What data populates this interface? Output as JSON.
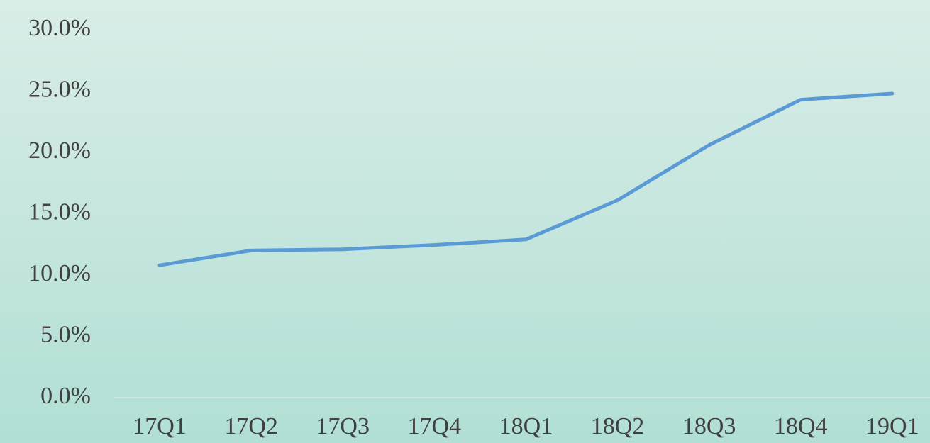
{
  "chart_data": {
    "type": "line",
    "categories": [
      "17Q1",
      "17Q2",
      "17Q3",
      "17Q4",
      "18Q1",
      "18Q2",
      "18Q3",
      "18Q4",
      "19Q1"
    ],
    "series": [
      {
        "name": "",
        "color": "#5b9bd5",
        "values": [
          10.8,
          12.0,
          12.1,
          12.45,
          12.9,
          16.1,
          20.6,
          24.3,
          24.8
        ]
      }
    ],
    "ylim": [
      0,
      30
    ],
    "yticks": [
      {
        "value": 0,
        "label": "0.0%"
      },
      {
        "value": 5,
        "label": "5.0%"
      },
      {
        "value": 10,
        "label": "10.0%"
      },
      {
        "value": 15,
        "label": "15.0%"
      },
      {
        "value": 20,
        "label": "20.0%"
      },
      {
        "value": 25,
        "label": "25.0%"
      },
      {
        "value": 30,
        "label": "30.0%"
      }
    ],
    "grid": false
  }
}
